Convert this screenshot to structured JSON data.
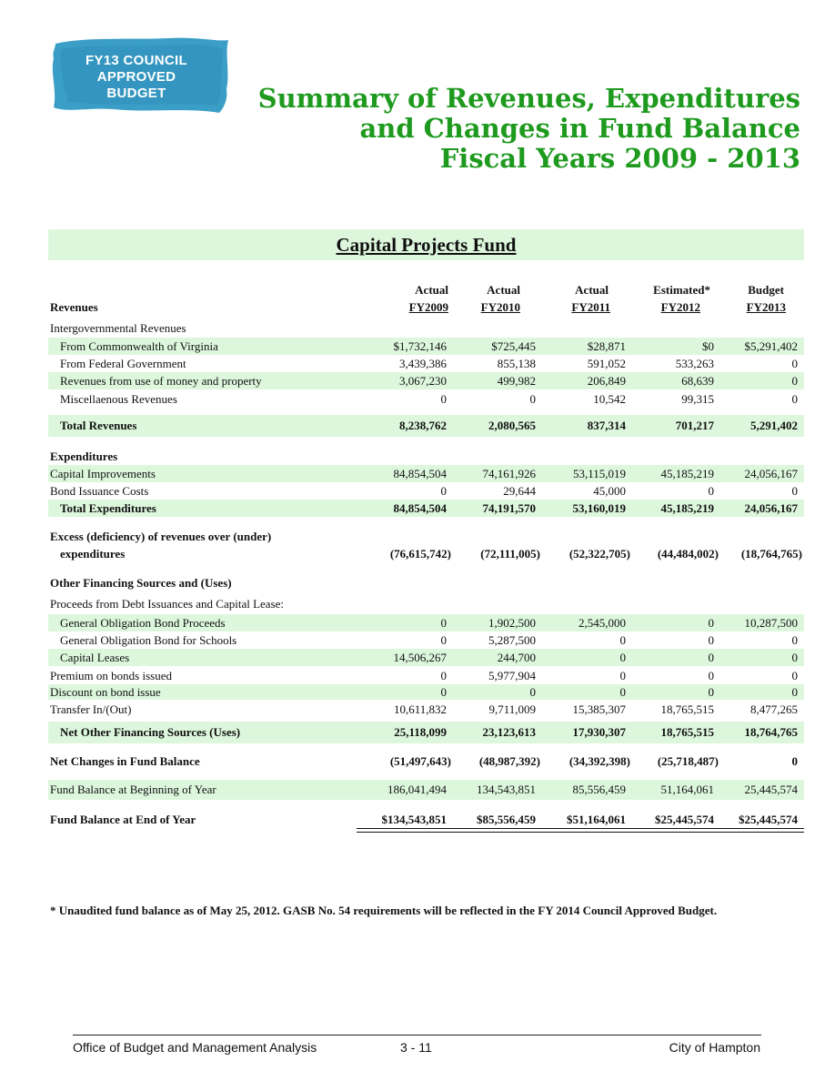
{
  "badge": {
    "lines": [
      "FY13 COUNCIL",
      "APPROVED",
      "BUDGET"
    ],
    "color": "#3a9ec6"
  },
  "title": {
    "lines": [
      "Summary of Revenues, Expenditures",
      "and Changes in Fund Balance",
      "Fiscal Years 2009 - 2013"
    ],
    "color": "#1e9a1e"
  },
  "fund_title": "Capital Projects Fund",
  "section_label": "Revenues",
  "columns": [
    {
      "top": "Actual",
      "bottom": "FY2009"
    },
    {
      "top": "Actual",
      "bottom": "FY2010"
    },
    {
      "top": "Actual",
      "bottom": "FY2011"
    },
    {
      "top": "Estimated*",
      "bottom": "FY2012"
    },
    {
      "top": "Budget",
      "bottom": "FY2013"
    }
  ],
  "rows": [
    {
      "label": "Intergovernmental Revenues",
      "values": []
    },
    {
      "label": "From Commonwealth of Virginia",
      "values": [
        "$1,732,146",
        "$725,445",
        "$28,871",
        "$0",
        "$5,291,402"
      ]
    },
    {
      "label": "From Federal Government",
      "values": [
        "3,439,386",
        "855,138",
        "591,052",
        "533,263",
        "0"
      ]
    },
    {
      "label": "Revenues from use of money and property",
      "values": [
        "3,067,230",
        "499,982",
        "206,849",
        "68,639",
        "0"
      ]
    },
    {
      "label": "Miscellaenous Revenues",
      "values": [
        "0",
        "0",
        "10,542",
        "99,315",
        "0"
      ]
    },
    {
      "label": "Total Revenues",
      "values": [
        "8,238,762",
        "2,080,565",
        "837,314",
        "701,217",
        "5,291,402"
      ]
    },
    {
      "label": "Expenditures",
      "values": []
    },
    {
      "label": "Capital Improvements",
      "values": [
        "84,854,504",
        "74,161,926",
        "53,115,019",
        "45,185,219",
        "24,056,167"
      ]
    },
    {
      "label": "Bond Issuance Costs",
      "values": [
        "0",
        "29,644",
        "45,000",
        "0",
        "0"
      ]
    },
    {
      "label": "Total Expenditures",
      "values": [
        "84,854,504",
        "74,191,570",
        "53,160,019",
        "45,185,219",
        "24,056,167"
      ]
    },
    {
      "label": "Excess (deficiency) of revenues over (under)",
      "values": []
    },
    {
      "label": "expenditures",
      "values": [
        "(76,615,742)",
        "(72,111,005)",
        "(52,322,705)",
        "(44,484,002)",
        "(18,764,765)"
      ]
    },
    {
      "label": "Other Financing Sources and (Uses)",
      "values": []
    },
    {
      "label": "Proceeds from Debt Issuances and Capital Lease:",
      "values": []
    },
    {
      "label": "General Obligation Bond Proceeds",
      "values": [
        "0",
        "1,902,500",
        "2,545,000",
        "0",
        "10,287,500"
      ]
    },
    {
      "label": "General Obligation Bond for Schools",
      "values": [
        "0",
        "5,287,500",
        "0",
        "0",
        "0"
      ]
    },
    {
      "label": "Capital Leases",
      "values": [
        "14,506,267",
        "244,700",
        "0",
        "0",
        "0"
      ]
    },
    {
      "label": "Premium on bonds issued",
      "values": [
        "0",
        "5,977,904",
        "0",
        "0",
        "0"
      ]
    },
    {
      "label": "Discount on bond issue",
      "values": [
        "0",
        "0",
        "0",
        "0",
        "0"
      ]
    },
    {
      "label": "Transfer In/(Out)",
      "values": [
        "10,611,832",
        "9,711,009",
        "15,385,307",
        "18,765,515",
        "8,477,265"
      ]
    },
    {
      "label": "Net Other Financing Sources (Uses)",
      "values": [
        "25,118,099",
        "23,123,613",
        "17,930,307",
        "18,765,515",
        "18,764,765"
      ]
    },
    {
      "label": "Net Changes in Fund Balance",
      "values": [
        "(51,497,643)",
        "(48,987,392)",
        "(34,392,398)",
        "(25,718,487)",
        "0"
      ]
    },
    {
      "label": "Fund Balance at Beginning of Year",
      "values": [
        "186,041,494",
        "134,543,851",
        "85,556,459",
        "51,164,061",
        "25,445,574"
      ]
    },
    {
      "label": "Fund Balance at End of Year",
      "values": [
        "$134,543,851",
        "$85,556,459",
        "$51,164,061",
        "$25,445,574",
        "$25,445,574"
      ]
    }
  ],
  "footnote": "* Unaudited fund balance as of May 25, 2012. GASB No. 54 requirements will be reflected in the FY 2014 Council Approved Budget.",
  "footer": {
    "left": "Office of Budget and Management Analysis",
    "center": "3 - 11",
    "right": "City of Hampton"
  }
}
